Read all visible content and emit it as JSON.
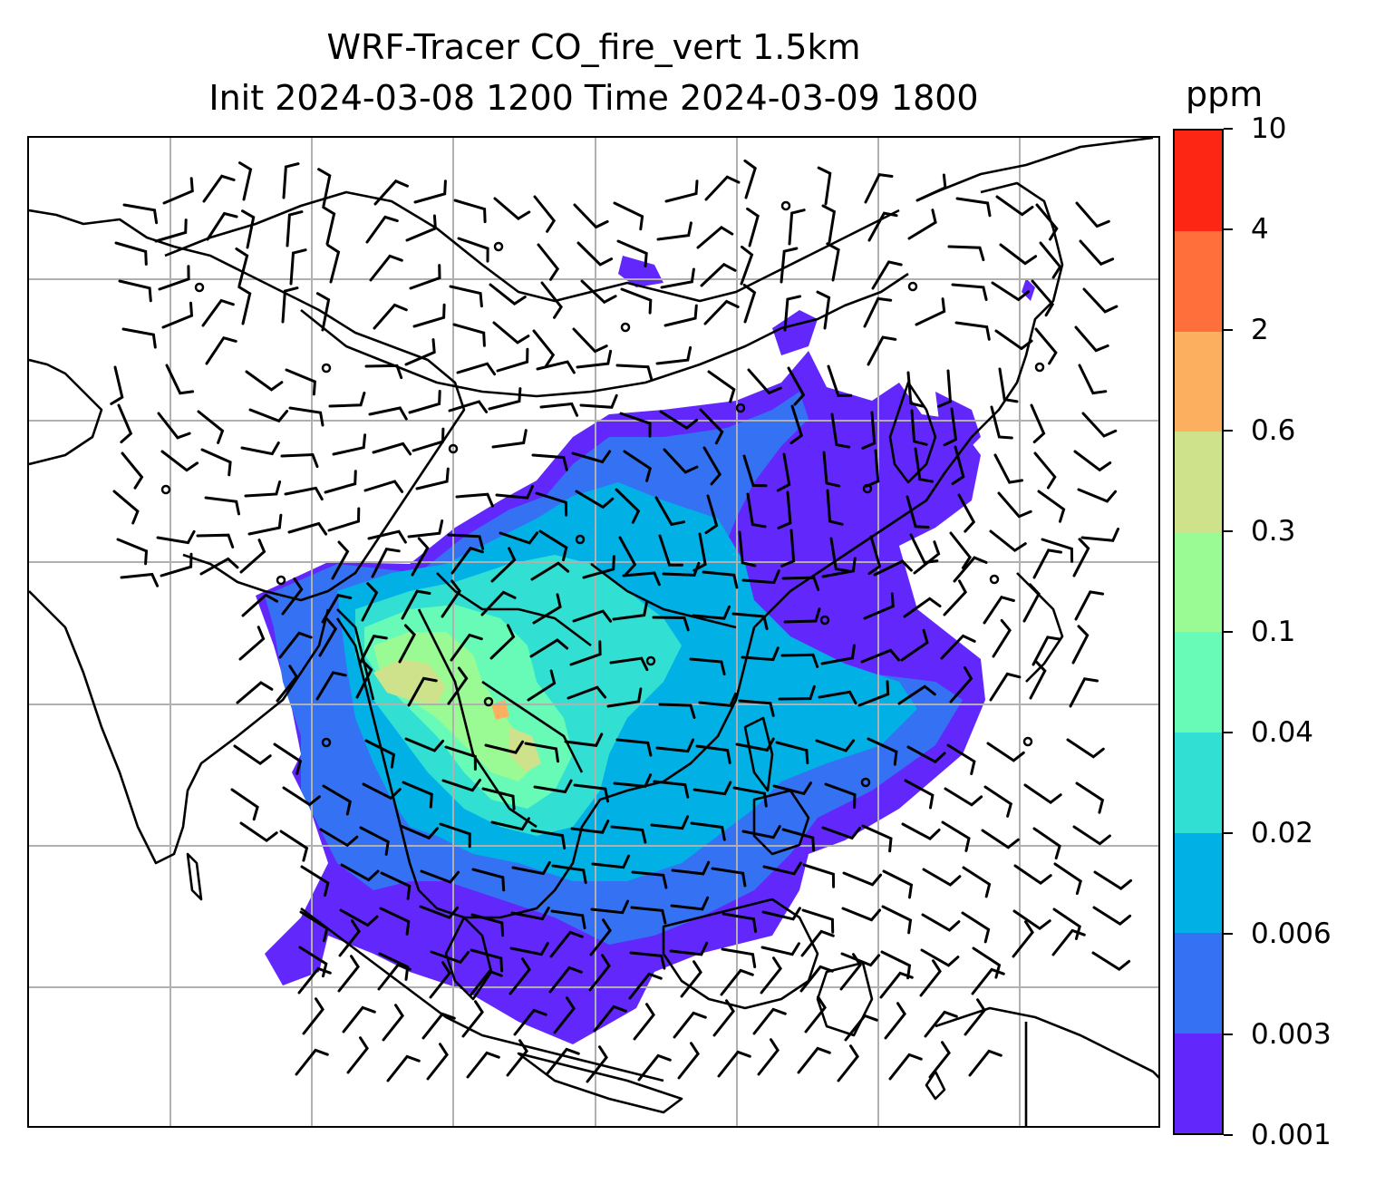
{
  "title": {
    "line1": "WRF-Tracer CO_fire_vert 1.5km",
    "line2": "Init 2024-03-08 1200 Time 2024-03-09 1800"
  },
  "colorbar": {
    "unit": "ppm",
    "ticks": [
      "0.001",
      "0.003",
      "0.006",
      "0.02",
      "0.04",
      "0.1",
      "0.3",
      "0.6",
      "2",
      "4",
      "10"
    ],
    "colors": [
      "#6228fb",
      "#3472f3",
      "#01b1e6",
      "#31e0d2",
      "#68fbb7",
      "#9afb94",
      "#cde28a",
      "#fdaf60",
      "#fe6f3b",
      "#fd2615"
    ]
  },
  "map": {
    "layers": [
      "coastlines",
      "country-borders",
      "lat-lon-gridlines",
      "wind-barbs",
      "tracer-concentration-fill"
    ],
    "gridlines": true
  }
}
